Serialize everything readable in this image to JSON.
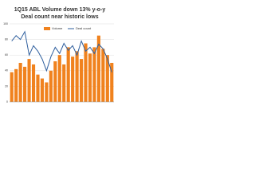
{
  "chart_data": {
    "type": "bar-line",
    "title": "1Q15 ABL Volume down 13% y-o-y",
    "subtitle": "Deal count near historic lows",
    "categories": [
      null,
      null,
      null,
      null,
      null,
      null,
      null,
      null,
      null,
      null,
      null,
      null,
      null,
      null,
      null,
      null,
      null,
      null,
      null,
      null,
      null,
      null,
      null,
      null
    ],
    "series": [
      {
        "name": "Volume",
        "color": "#f0821e",
        "values": [
          38,
          42,
          50,
          45,
          55,
          48,
          35,
          30,
          25,
          40,
          52,
          60,
          48,
          70,
          58,
          65,
          55,
          75,
          62,
          70,
          85,
          68,
          60,
          50
        ]
      },
      {
        "name": "Deal count",
        "color": "#2f5f9e",
        "axis": "y2",
        "values": [
          78,
          85,
          80,
          90,
          60,
          72,
          65,
          55,
          40,
          58,
          70,
          62,
          75,
          66,
          72,
          60,
          78,
          65,
          70,
          62,
          74,
          68,
          55,
          38
        ]
      }
    ],
    "ylim": [
      0,
      100
    ],
    "yticks": [
      0,
      20,
      40,
      60,
      80,
      100
    ],
    "y2lim": [
      0,
      100
    ],
    "grid": true
  }
}
